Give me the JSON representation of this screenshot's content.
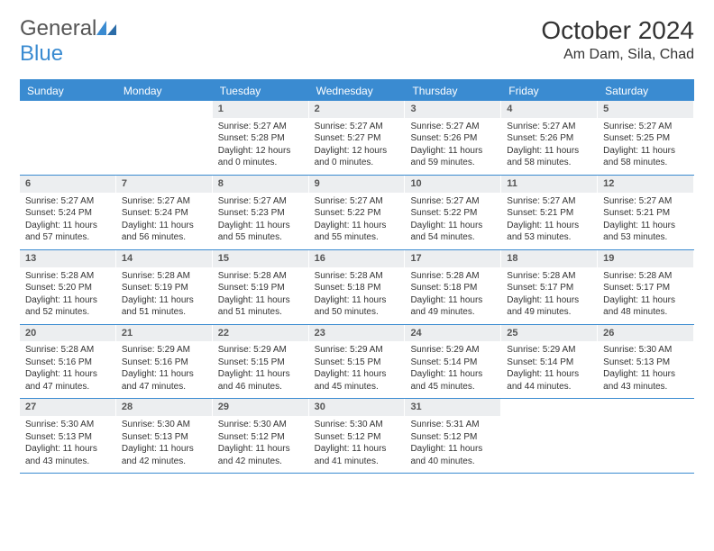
{
  "logo": {
    "part1": "General",
    "part2": "Blue"
  },
  "title": "October 2024",
  "location": "Am Dam, Sila, Chad",
  "colors": {
    "accent": "#3a8bd1",
    "daynum_bg": "#eceef0",
    "text": "#333333"
  },
  "weekdays": [
    "Sunday",
    "Monday",
    "Tuesday",
    "Wednesday",
    "Thursday",
    "Friday",
    "Saturday"
  ],
  "weeks": [
    [
      {
        "num": "",
        "sunrise": "",
        "sunset": "",
        "daylight": ""
      },
      {
        "num": "",
        "sunrise": "",
        "sunset": "",
        "daylight": ""
      },
      {
        "num": "1",
        "sunrise": "Sunrise: 5:27 AM",
        "sunset": "Sunset: 5:28 PM",
        "daylight": "Daylight: 12 hours and 0 minutes."
      },
      {
        "num": "2",
        "sunrise": "Sunrise: 5:27 AM",
        "sunset": "Sunset: 5:27 PM",
        "daylight": "Daylight: 12 hours and 0 minutes."
      },
      {
        "num": "3",
        "sunrise": "Sunrise: 5:27 AM",
        "sunset": "Sunset: 5:26 PM",
        "daylight": "Daylight: 11 hours and 59 minutes."
      },
      {
        "num": "4",
        "sunrise": "Sunrise: 5:27 AM",
        "sunset": "Sunset: 5:26 PM",
        "daylight": "Daylight: 11 hours and 58 minutes."
      },
      {
        "num": "5",
        "sunrise": "Sunrise: 5:27 AM",
        "sunset": "Sunset: 5:25 PM",
        "daylight": "Daylight: 11 hours and 58 minutes."
      }
    ],
    [
      {
        "num": "6",
        "sunrise": "Sunrise: 5:27 AM",
        "sunset": "Sunset: 5:24 PM",
        "daylight": "Daylight: 11 hours and 57 minutes."
      },
      {
        "num": "7",
        "sunrise": "Sunrise: 5:27 AM",
        "sunset": "Sunset: 5:24 PM",
        "daylight": "Daylight: 11 hours and 56 minutes."
      },
      {
        "num": "8",
        "sunrise": "Sunrise: 5:27 AM",
        "sunset": "Sunset: 5:23 PM",
        "daylight": "Daylight: 11 hours and 55 minutes."
      },
      {
        "num": "9",
        "sunrise": "Sunrise: 5:27 AM",
        "sunset": "Sunset: 5:22 PM",
        "daylight": "Daylight: 11 hours and 55 minutes."
      },
      {
        "num": "10",
        "sunrise": "Sunrise: 5:27 AM",
        "sunset": "Sunset: 5:22 PM",
        "daylight": "Daylight: 11 hours and 54 minutes."
      },
      {
        "num": "11",
        "sunrise": "Sunrise: 5:27 AM",
        "sunset": "Sunset: 5:21 PM",
        "daylight": "Daylight: 11 hours and 53 minutes."
      },
      {
        "num": "12",
        "sunrise": "Sunrise: 5:27 AM",
        "sunset": "Sunset: 5:21 PM",
        "daylight": "Daylight: 11 hours and 53 minutes."
      }
    ],
    [
      {
        "num": "13",
        "sunrise": "Sunrise: 5:28 AM",
        "sunset": "Sunset: 5:20 PM",
        "daylight": "Daylight: 11 hours and 52 minutes."
      },
      {
        "num": "14",
        "sunrise": "Sunrise: 5:28 AM",
        "sunset": "Sunset: 5:19 PM",
        "daylight": "Daylight: 11 hours and 51 minutes."
      },
      {
        "num": "15",
        "sunrise": "Sunrise: 5:28 AM",
        "sunset": "Sunset: 5:19 PM",
        "daylight": "Daylight: 11 hours and 51 minutes."
      },
      {
        "num": "16",
        "sunrise": "Sunrise: 5:28 AM",
        "sunset": "Sunset: 5:18 PM",
        "daylight": "Daylight: 11 hours and 50 minutes."
      },
      {
        "num": "17",
        "sunrise": "Sunrise: 5:28 AM",
        "sunset": "Sunset: 5:18 PM",
        "daylight": "Daylight: 11 hours and 49 minutes."
      },
      {
        "num": "18",
        "sunrise": "Sunrise: 5:28 AM",
        "sunset": "Sunset: 5:17 PM",
        "daylight": "Daylight: 11 hours and 49 minutes."
      },
      {
        "num": "19",
        "sunrise": "Sunrise: 5:28 AM",
        "sunset": "Sunset: 5:17 PM",
        "daylight": "Daylight: 11 hours and 48 minutes."
      }
    ],
    [
      {
        "num": "20",
        "sunrise": "Sunrise: 5:28 AM",
        "sunset": "Sunset: 5:16 PM",
        "daylight": "Daylight: 11 hours and 47 minutes."
      },
      {
        "num": "21",
        "sunrise": "Sunrise: 5:29 AM",
        "sunset": "Sunset: 5:16 PM",
        "daylight": "Daylight: 11 hours and 47 minutes."
      },
      {
        "num": "22",
        "sunrise": "Sunrise: 5:29 AM",
        "sunset": "Sunset: 5:15 PM",
        "daylight": "Daylight: 11 hours and 46 minutes."
      },
      {
        "num": "23",
        "sunrise": "Sunrise: 5:29 AM",
        "sunset": "Sunset: 5:15 PM",
        "daylight": "Daylight: 11 hours and 45 minutes."
      },
      {
        "num": "24",
        "sunrise": "Sunrise: 5:29 AM",
        "sunset": "Sunset: 5:14 PM",
        "daylight": "Daylight: 11 hours and 45 minutes."
      },
      {
        "num": "25",
        "sunrise": "Sunrise: 5:29 AM",
        "sunset": "Sunset: 5:14 PM",
        "daylight": "Daylight: 11 hours and 44 minutes."
      },
      {
        "num": "26",
        "sunrise": "Sunrise: 5:30 AM",
        "sunset": "Sunset: 5:13 PM",
        "daylight": "Daylight: 11 hours and 43 minutes."
      }
    ],
    [
      {
        "num": "27",
        "sunrise": "Sunrise: 5:30 AM",
        "sunset": "Sunset: 5:13 PM",
        "daylight": "Daylight: 11 hours and 43 minutes."
      },
      {
        "num": "28",
        "sunrise": "Sunrise: 5:30 AM",
        "sunset": "Sunset: 5:13 PM",
        "daylight": "Daylight: 11 hours and 42 minutes."
      },
      {
        "num": "29",
        "sunrise": "Sunrise: 5:30 AM",
        "sunset": "Sunset: 5:12 PM",
        "daylight": "Daylight: 11 hours and 42 minutes."
      },
      {
        "num": "30",
        "sunrise": "Sunrise: 5:30 AM",
        "sunset": "Sunset: 5:12 PM",
        "daylight": "Daylight: 11 hours and 41 minutes."
      },
      {
        "num": "31",
        "sunrise": "Sunrise: 5:31 AM",
        "sunset": "Sunset: 5:12 PM",
        "daylight": "Daylight: 11 hours and 40 minutes."
      },
      {
        "num": "",
        "sunrise": "",
        "sunset": "",
        "daylight": ""
      },
      {
        "num": "",
        "sunrise": "",
        "sunset": "",
        "daylight": ""
      }
    ]
  ]
}
